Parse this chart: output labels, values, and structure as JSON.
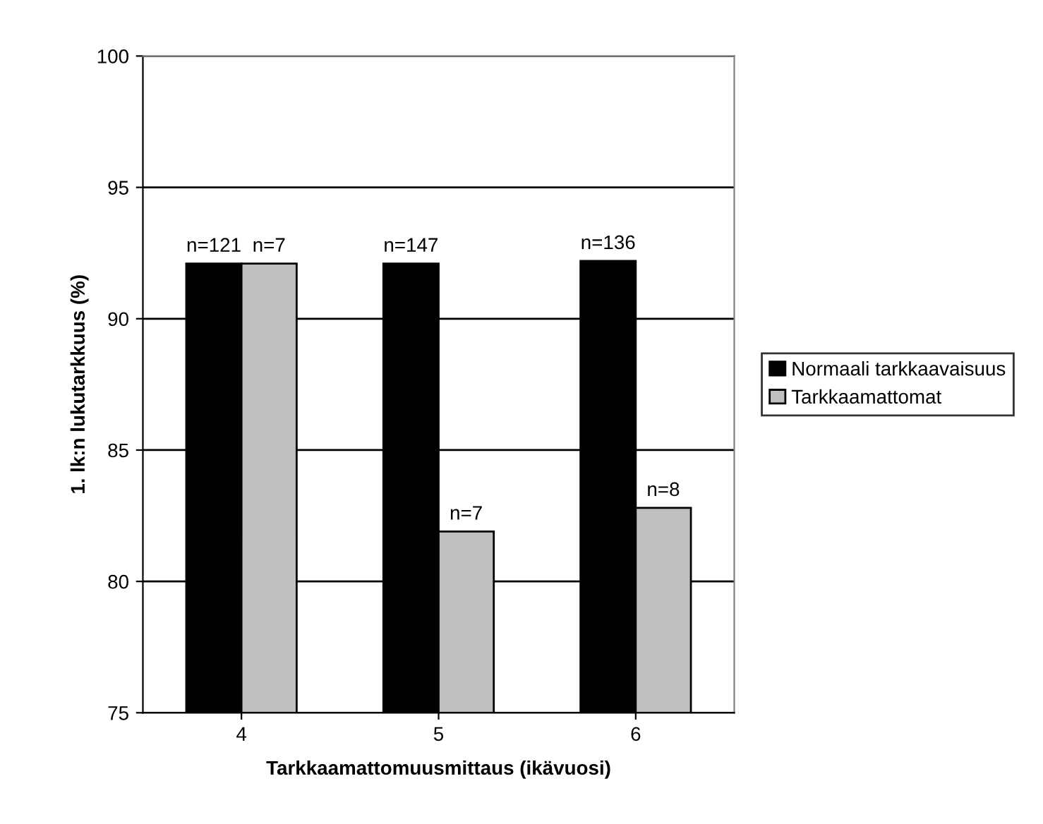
{
  "chart_data": {
    "type": "bar",
    "xlabel": "Tarkkaamattomuusmittaus (ikävuosi)",
    "ylabel": "1. lk:n lukutarkkuus (%)",
    "categories": [
      "4",
      "5",
      "6"
    ],
    "series": [
      {
        "name": "Normaali tarkkaavaisuus",
        "color": "#000000",
        "values": [
          92.1,
          92.1,
          92.2
        ]
      },
      {
        "name": "Tarkkaamattomat",
        "color": "#c0c0c0",
        "values": [
          92.1,
          81.9,
          82.8
        ]
      }
    ],
    "annotations": [
      {
        "text": "n=121",
        "x": "4",
        "y": 92.1
      },
      {
        "text": "n=7",
        "x": "4",
        "y": 92.1
      },
      {
        "text": "n=147",
        "x": "5",
        "y": 92.1
      },
      {
        "text": "n=7",
        "x": "5",
        "y": 81.9
      },
      {
        "text": "n=136",
        "x": "6",
        "y": 92.2
      },
      {
        "text": "n=8",
        "x": "6",
        "y": 82.8
      }
    ],
    "ylim": [
      75,
      100
    ],
    "yticks": [
      75,
      80,
      85,
      90,
      95,
      100
    ],
    "grid": "y",
    "legend": "right"
  }
}
